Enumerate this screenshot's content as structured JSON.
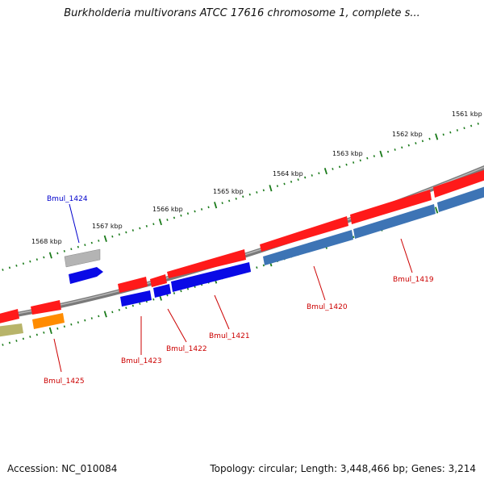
{
  "title": "Burkholderia multivorans ATCC 17616 chromosome 1, complete s...",
  "accession": "Accession: NC_010084",
  "topology": "Topology: circular; Length: 3,448,466 bp; Genes: 3,214",
  "colors": {
    "backbone": "#7a7a7a",
    "tick": "#1a7a1a",
    "gene_red": "#ff1a1a",
    "gene_blue": "#0a0ae6",
    "gene_steel": "#3d74b5",
    "gene_gray": "#b4b4b4",
    "gene_orange": "#ff8c00",
    "gene_olive": "#b8b46a",
    "label_red": "#cc0000",
    "label_blue": "#0000cc"
  },
  "ticks": [
    "1561 kbp",
    "1562 kbp",
    "1563 kbp",
    "1564 kbp",
    "1565 kbp",
    "1566 kbp",
    "1567 kbp",
    "1568 kbp"
  ],
  "gene_labels": [
    "Bmul_1424",
    "Bmul_1425",
    "Bmul_1423",
    "Bmul_1422",
    "Bmul_1421",
    "Bmul_1420",
    "Bmul_1419"
  ]
}
